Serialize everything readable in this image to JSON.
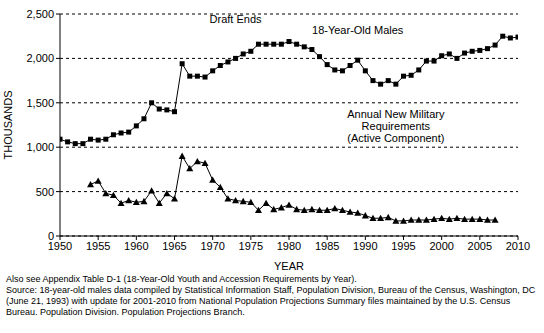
{
  "chart_data": {
    "type": "line",
    "x_label": "YEAR",
    "y_label": "THOUSANDS",
    "x": [
      1950,
      1951,
      1952,
      1953,
      1954,
      1955,
      1956,
      1957,
      1958,
      1959,
      1960,
      1961,
      1962,
      1963,
      1964,
      1965,
      1966,
      1967,
      1968,
      1969,
      1970,
      1971,
      1972,
      1973,
      1974,
      1975,
      1976,
      1977,
      1978,
      1979,
      1980,
      1981,
      1982,
      1983,
      1984,
      1985,
      1986,
      1987,
      1988,
      1989,
      1990,
      1991,
      1992,
      1993,
      1994,
      1995,
      1996,
      1997,
      1998,
      1999,
      2000,
      2001,
      2002,
      2003,
      2004,
      2005,
      2006,
      2007,
      2008,
      2009,
      2010
    ],
    "series": [
      {
        "name": "18-Year-Old Males",
        "color": "#000000",
        "marker": "square",
        "label_at": [
          1989,
          2280
        ],
        "values": [
          1090,
          1060,
          1040,
          1040,
          1090,
          1080,
          1090,
          1140,
          1160,
          1170,
          1240,
          1320,
          1500,
          1430,
          1420,
          1400,
          1940,
          1800,
          1800,
          1790,
          1860,
          1920,
          1960,
          2000,
          2050,
          2080,
          2160,
          2160,
          2160,
          2160,
          2190,
          2160,
          2130,
          2100,
          2020,
          1930,
          1870,
          1860,
          1920,
          1980,
          1860,
          1750,
          1710,
          1750,
          1710,
          1800,
          1810,
          1870,
          1970,
          1970,
          2030,
          2050,
          2000,
          2060,
          2080,
          2090,
          2110,
          2150,
          2250,
          2230,
          2240
        ]
      },
      {
        "name": "Annual New Military Requirements (Active Component)",
        "color": "#000000",
        "marker": "triangle",
        "label_at": [
          1994,
          1330
        ],
        "values": [
          null,
          null,
          null,
          null,
          580,
          620,
          480,
          460,
          370,
          400,
          380,
          390,
          510,
          370,
          480,
          420,
          900,
          760,
          840,
          820,
          630,
          550,
          420,
          400,
          390,
          380,
          290,
          370,
          300,
          320,
          350,
          300,
          290,
          300,
          290,
          290,
          310,
          290,
          270,
          260,
          230,
          200,
          200,
          210,
          170,
          170,
          180,
          180,
          180,
          190,
          200,
          190,
          200,
          190,
          190,
          190,
          180,
          180,
          null,
          null,
          null
        ]
      }
    ],
    "annotations": [
      {
        "text": "Draft Ends",
        "x": 1973,
        "y": 2400
      }
    ],
    "xlim": [
      1950,
      2010
    ],
    "xticks": [
      1950,
      1955,
      1960,
      1965,
      1970,
      1975,
      1980,
      1985,
      1990,
      1995,
      2000,
      2005,
      2010
    ],
    "ylim": [
      0,
      2500
    ],
    "yticks": [
      0,
      500,
      {
        "value": 1000,
        "label": "1,000"
      },
      {
        "value": 1500,
        "label": "1,500"
      },
      {
        "value": 2000,
        "label": "2,000"
      },
      {
        "value": 2500,
        "label": "2,500"
      }
    ],
    "grid": true,
    "notes": [
      "Also see Appendix Table D-1 (18-Year-Old Youth and Accession Requirements by Year).",
      "Source:  18-year-old males data compiled by Statistical Information Staff, Population Division, Bureau of the Census, Washington, DC (June 21, 1993) with update for 2001-2010 from National Population Projections Summary files maintained by the U.S. Census Bureau. Population Division. Population Projections Branch."
    ]
  }
}
